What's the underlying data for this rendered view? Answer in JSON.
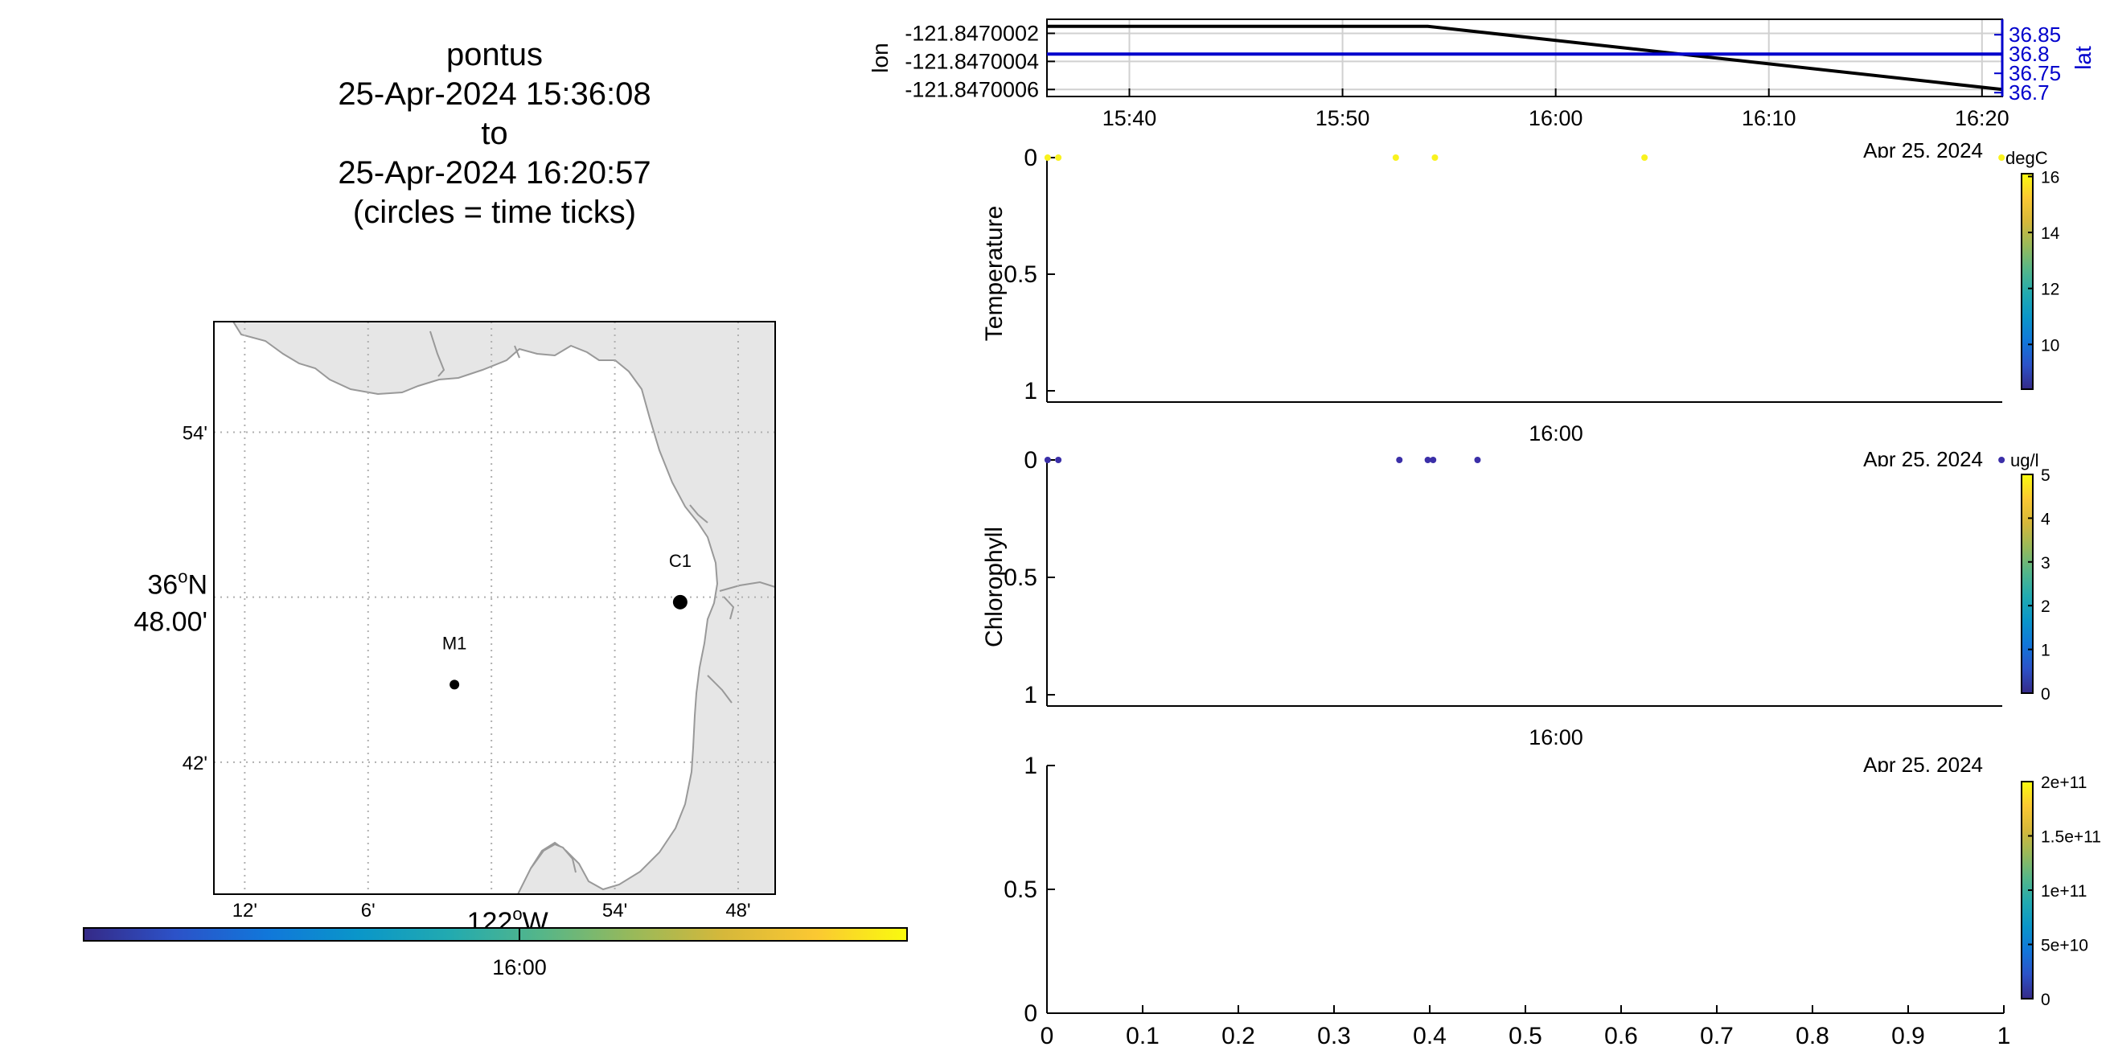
{
  "title": {
    "lines": [
      "pontus",
      "25-Apr-2024 15:36:08",
      "to",
      "25-Apr-2024 16:20:57",
      "(circles = time ticks)"
    ]
  },
  "colors": {
    "land": "#e6e6e6",
    "coast": "#999999",
    "grid": "#b0b0b0",
    "lon_line": "#000000",
    "lat_line": "#0000cc",
    "temp_points": "#f9f21e",
    "chl_points": "#3b2fa8",
    "parula": [
      "#352a87",
      "#2c52c8",
      "#1177da",
      "#0a96c9",
      "#22aab0",
      "#55b689",
      "#98b95a",
      "#d6b83a",
      "#fbc832",
      "#f9fb0e"
    ]
  },
  "map": {
    "lat_ticks": [
      "54'",
      "36°N 48.00'",
      "42'"
    ],
    "lat_tick_parts": [
      "36",
      "o",
      "N",
      "48.00'"
    ],
    "lon_ticks": [
      "12'",
      "6'",
      "54'",
      "48'"
    ],
    "lon_center_label": [
      "122",
      "o",
      "W"
    ],
    "stations": [
      {
        "name": "C1",
        "lon": -121.847,
        "lat": 36.797
      },
      {
        "name": "M1",
        "lon": -122.03,
        "lat": 36.747
      }
    ],
    "colorbar_tick": "16:00"
  },
  "chart_data": [
    {
      "type": "line",
      "name": "position",
      "x_ticks": [
        "15:40",
        "15:50",
        "16:00",
        "16:10",
        "16:20"
      ],
      "date_label": "Apr 25, 2024",
      "xlim": [
        "15:36:08",
        "16:20:57"
      ],
      "series": [
        {
          "name": "lon",
          "axis": "left",
          "x": [
            "15:36:08",
            "15:54:00",
            "16:20:57"
          ],
          "y": [
            -121.84700015,
            -121.84700015,
            -121.8470006
          ]
        },
        {
          "name": "lat",
          "axis": "right",
          "x": [
            "15:36:08",
            "16:20:57"
          ],
          "y": [
            36.8,
            36.8
          ]
        }
      ],
      "left_axis": {
        "label": "lon",
        "ticks": [
          "-121.8470002",
          "-121.8470004",
          "-121.8470006"
        ],
        "ylim": [
          -121.8470001,
          -121.84700065
        ]
      },
      "right_axis": {
        "label": "lat",
        "ticks": [
          "36.85",
          "36.8",
          "36.75",
          "36.7"
        ],
        "ylim": [
          36.69,
          36.89
        ]
      },
      "grid": true
    },
    {
      "type": "scatter",
      "name": "temperature",
      "ylabel": "Temperature",
      "y_ticks": [
        "0",
        "0.5",
        "1"
      ],
      "ylim": [
        0,
        1
      ],
      "x_tick": "16:00",
      "date_label": "Apr 25, 2024",
      "x": [
        "15:36:10",
        "15:36:40",
        "15:52:30",
        "15:54:20",
        "16:04:10",
        "16:20:55"
      ],
      "y": [
        0,
        0,
        0,
        0,
        0,
        0
      ],
      "colorbar": {
        "unit": "degC",
        "ticks": [
          "16",
          "14",
          "12",
          "10"
        ],
        "range": [
          8.4,
          16.1
        ]
      }
    },
    {
      "type": "scatter",
      "name": "chlorophyll",
      "ylabel": "Chlorophyll",
      "y_ticks": [
        "0",
        "0.5",
        "1"
      ],
      "ylim": [
        0,
        1
      ],
      "x_tick": "16:00",
      "date_label": "Apr 25, 2024",
      "x": [
        "15:36:10",
        "15:36:40",
        "15:52:40",
        "15:54:00",
        "15:54:15",
        "15:56:20",
        "16:20:55"
      ],
      "y": [
        0,
        0,
        0,
        0,
        0,
        0,
        0
      ],
      "colorbar": {
        "unit": "ug/l",
        "ticks": [
          "5",
          "4",
          "3",
          "2",
          "1",
          "0"
        ],
        "range": [
          0,
          5
        ]
      }
    },
    {
      "type": "scatter",
      "name": "empty",
      "y_ticks": [
        "0",
        "0.5",
        "1"
      ],
      "ylim": [
        0,
        1
      ],
      "x_ticks": [
        "0",
        "0.1",
        "0.2",
        "0.3",
        "0.4",
        "0.5",
        "0.6",
        "0.7",
        "0.8",
        "0.9",
        "1"
      ],
      "xlim": [
        0,
        1
      ],
      "date_label": "Apr 25, 2024",
      "colorbar": {
        "ticks": [
          "2e+11",
          "1.5e+11",
          "1e+11",
          "5e+10",
          "0"
        ],
        "range": [
          0,
          200000000000
        ]
      }
    }
  ]
}
